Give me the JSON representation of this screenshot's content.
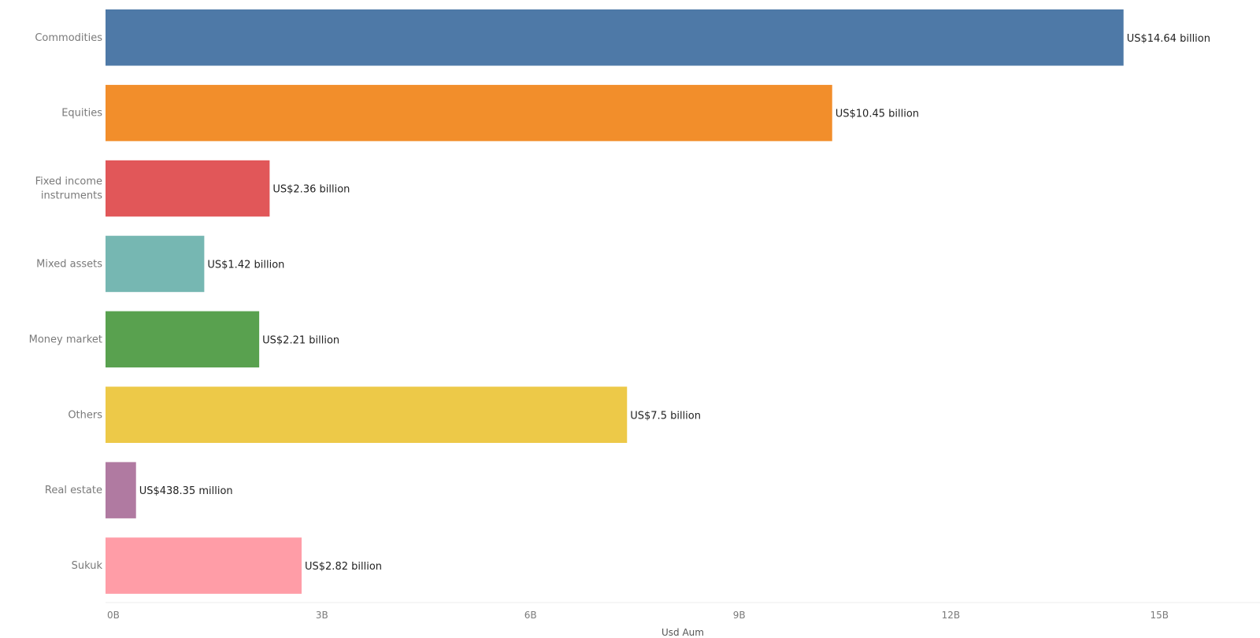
{
  "chart_data": {
    "type": "bar",
    "orientation": "horizontal",
    "categories": [
      "Commodities",
      "Equities",
      "Fixed income instruments",
      "Mixed assets",
      "Money market",
      "Others",
      "Real estate",
      "Sukuk"
    ],
    "values": [
      14.64,
      10.45,
      2.36,
      1.42,
      2.21,
      7.5,
      0.43835,
      2.82
    ],
    "value_unit": "billion USD",
    "data_labels": [
      "US$14.64 billion",
      "US$10.45 billion",
      "US$2.36 billion",
      "US$1.42 billion",
      "US$2.21 billion",
      "US$7.5 billion",
      "US$438.35 million",
      "US$2.82 billion"
    ],
    "colors": [
      "#4e79a7",
      "#f28e2b",
      "#e15759",
      "#76b7b2",
      "#59a14f",
      "#edc948",
      "#b07aa1",
      "#ff9da7"
    ],
    "xlabel": "Usd Aum",
    "ylabel": "",
    "xlim": [
      0,
      16.9
    ],
    "x_ticks": [
      0,
      3,
      6,
      9,
      12,
      15
    ],
    "x_tick_labels": [
      "0B",
      "3B",
      "6B",
      "9B",
      "12B",
      "15B"
    ],
    "grid": false,
    "legend": "none"
  }
}
